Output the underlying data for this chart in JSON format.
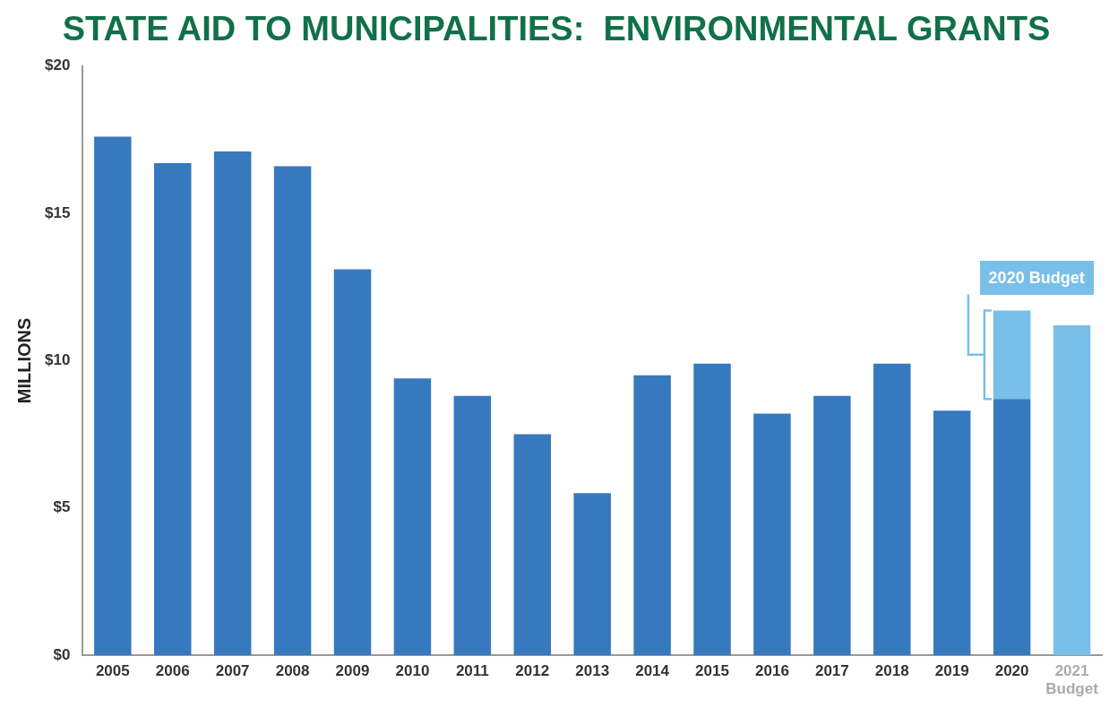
{
  "chart_data": {
    "type": "bar",
    "title": "STATE AID TO MUNICIPALITIES:  ENVIRONMENTAL GRANTS",
    "ylabel": "MILLIONS",
    "categories": [
      "2005",
      "2006",
      "2007",
      "2008",
      "2009",
      "2010",
      "2011",
      "2012",
      "2013",
      "2014",
      "2015",
      "2016",
      "2017",
      "2018",
      "2019",
      "2020",
      "2021\nBudget"
    ],
    "stacked": true,
    "series": [
      {
        "color": "#3779be",
        "values": [
          17.6,
          16.7,
          17.1,
          16.6,
          13.1,
          9.4,
          8.8,
          7.5,
          5.5,
          9.5,
          9.9,
          8.2,
          8.8,
          9.9,
          8.3,
          8.7,
          null
        ]
      },
      {
        "color": "#78bfea",
        "values": [
          null,
          null,
          null,
          null,
          null,
          null,
          null,
          null,
          null,
          null,
          null,
          null,
          null,
          null,
          null,
          3.0,
          11.2
        ]
      }
    ],
    "ylim": [
      0,
      20
    ],
    "yticks": [
      {
        "value": 0,
        "label": "$0"
      },
      {
        "value": 5,
        "label": "$5"
      },
      {
        "value": 10,
        "label": "$10"
      },
      {
        "value": 15,
        "label": "$15"
      },
      {
        "value": 20,
        "label": "$20"
      }
    ],
    "grid": false,
    "legend": false,
    "annotations": [
      {
        "text": "2020 Budget",
        "x": "2020",
        "y": 11.7
      }
    ]
  }
}
